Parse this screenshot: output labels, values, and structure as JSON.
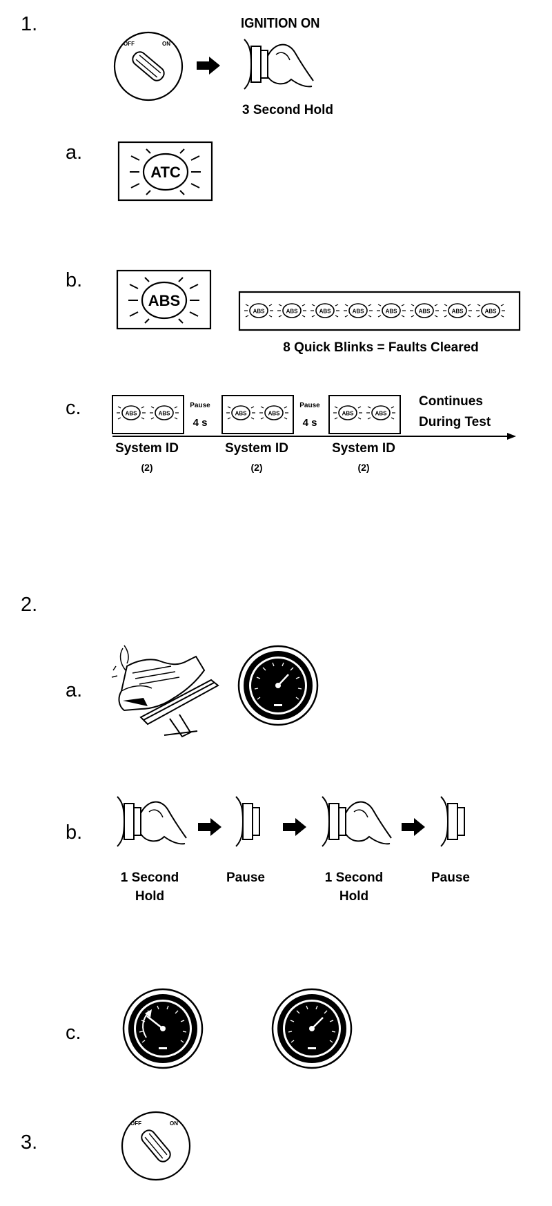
{
  "step1": {
    "number": "1.",
    "switch_off": "OFF",
    "switch_on": "ON",
    "ignition_label": "IGNITION ON",
    "hold_label": "3 Second Hold",
    "a": {
      "letter": "a.",
      "lamp": "ATC"
    },
    "b": {
      "letter": "b.",
      "lamp": "ABS",
      "blink_lamp": "ABS",
      "blink_count": 8,
      "caption": "8 Quick Blinks = Faults Cleared"
    },
    "c": {
      "letter": "c.",
      "pause_word": "Pause",
      "pause_time": "4 s",
      "continues_line1": "Continues",
      "continues_line2": "During Test",
      "groups": [
        {
          "label": "System ID",
          "count": "(2)"
        },
        {
          "label": "System ID",
          "count": "(2)"
        },
        {
          "label": "System ID",
          "count": "(2)"
        }
      ]
    }
  },
  "step2": {
    "number": "2.",
    "a": {
      "letter": "a."
    },
    "b": {
      "letter": "b.",
      "steps": [
        {
          "line1": "1 Second",
          "line2": "Hold"
        },
        {
          "line1": "Pause",
          "line2": ""
        },
        {
          "line1": "1 Second",
          "line2": "Hold"
        },
        {
          "line1": "Pause",
          "line2": ""
        }
      ]
    },
    "c": {
      "letter": "c."
    }
  },
  "step3": {
    "number": "3.",
    "switch_off": "OFF",
    "switch_on": "ON"
  }
}
